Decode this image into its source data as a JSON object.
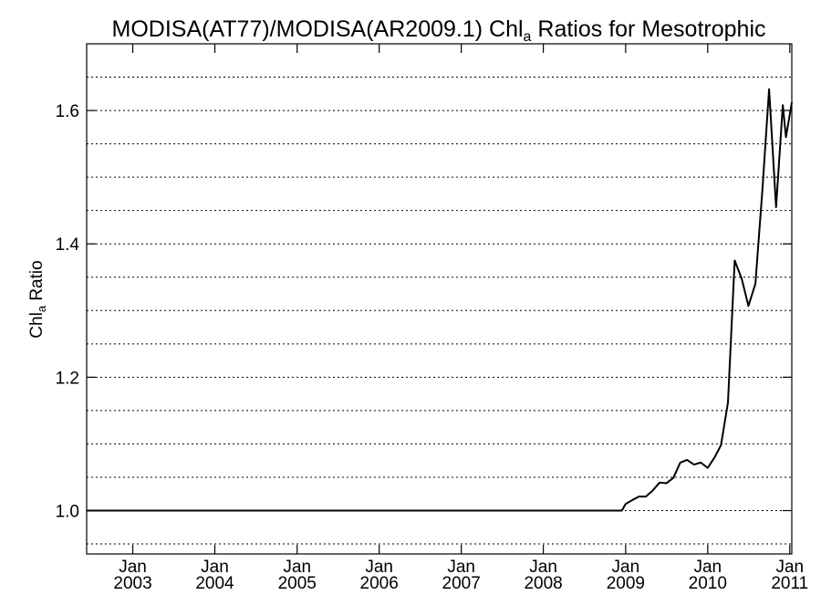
{
  "chart_data": {
    "type": "line",
    "title": {
      "prefix": "MODISA(AT77)/MODISA(AR2009.1)  Chl",
      "subscript": "a",
      "suffix": " Ratios for Mesotrophic"
    },
    "ylabel": {
      "prefix": "Chl",
      "subscript": "a",
      "suffix": " Ratio"
    },
    "xlabel": "",
    "xlim": [
      "2002-06-10",
      "2011-01-10"
    ],
    "ylim": [
      0.935,
      1.7
    ],
    "grid": true,
    "x_ticks": [
      {
        "date": "2003-01-01",
        "month": "Jan",
        "year": "2003"
      },
      {
        "date": "2004-01-01",
        "month": "Jan",
        "year": "2004"
      },
      {
        "date": "2005-01-01",
        "month": "Jan",
        "year": "2005"
      },
      {
        "date": "2006-01-01",
        "month": "Jan",
        "year": "2006"
      },
      {
        "date": "2007-01-01",
        "month": "Jan",
        "year": "2007"
      },
      {
        "date": "2008-01-01",
        "month": "Jan",
        "year": "2008"
      },
      {
        "date": "2009-01-01",
        "month": "Jan",
        "year": "2009"
      },
      {
        "date": "2010-01-01",
        "month": "Jan",
        "year": "2010"
      },
      {
        "date": "2011-01-01",
        "month": "Jan",
        "year": "2011"
      }
    ],
    "y_ticks": [
      {
        "value": 1.0,
        "label": "1.0"
      },
      {
        "value": 1.2,
        "label": "1.2"
      },
      {
        "value": 1.4,
        "label": "1.4"
      },
      {
        "value": 1.6,
        "label": "1.6"
      }
    ],
    "y_gridlines": [
      0.95,
      1.0,
      1.05,
      1.1,
      1.15,
      1.2,
      1.25,
      1.3,
      1.35,
      1.4,
      1.45,
      1.5,
      1.55,
      1.6,
      1.65
    ],
    "series": [
      {
        "color": "#000000",
        "points": [
          {
            "x": "2002-06-10",
            "y": 1.0
          },
          {
            "x": "2008-12-15",
            "y": 1.0
          },
          {
            "x": "2009-01-01",
            "y": 1.01
          },
          {
            "x": "2009-02-01",
            "y": 1.016
          },
          {
            "x": "2009-03-01",
            "y": 1.021
          },
          {
            "x": "2009-04-01",
            "y": 1.021
          },
          {
            "x": "2009-05-01",
            "y": 1.03
          },
          {
            "x": "2009-06-01",
            "y": 1.042
          },
          {
            "x": "2009-07-01",
            "y": 1.041
          },
          {
            "x": "2009-08-01",
            "y": 1.049
          },
          {
            "x": "2009-09-01",
            "y": 1.072
          },
          {
            "x": "2009-10-01",
            "y": 1.076
          },
          {
            "x": "2009-11-01",
            "y": 1.069
          },
          {
            "x": "2009-12-01",
            "y": 1.072
          },
          {
            "x": "2010-01-01",
            "y": 1.064
          },
          {
            "x": "2010-02-01",
            "y": 1.08
          },
          {
            "x": "2010-03-01",
            "y": 1.098
          },
          {
            "x": "2010-04-01",
            "y": 1.162
          },
          {
            "x": "2010-05-01",
            "y": 1.375
          },
          {
            "x": "2010-06-01",
            "y": 1.348
          },
          {
            "x": "2010-07-01",
            "y": 1.307
          },
          {
            "x": "2010-08-01",
            "y": 1.34
          },
          {
            "x": "2010-09-01",
            "y": 1.48
          },
          {
            "x": "2010-10-01",
            "y": 1.632
          },
          {
            "x": "2010-11-01",
            "y": 1.455
          },
          {
            "x": "2010-12-01",
            "y": 1.608
          },
          {
            "x": "2010-12-15",
            "y": 1.56
          },
          {
            "x": "2011-01-10",
            "y": 1.612
          }
        ]
      }
    ]
  }
}
